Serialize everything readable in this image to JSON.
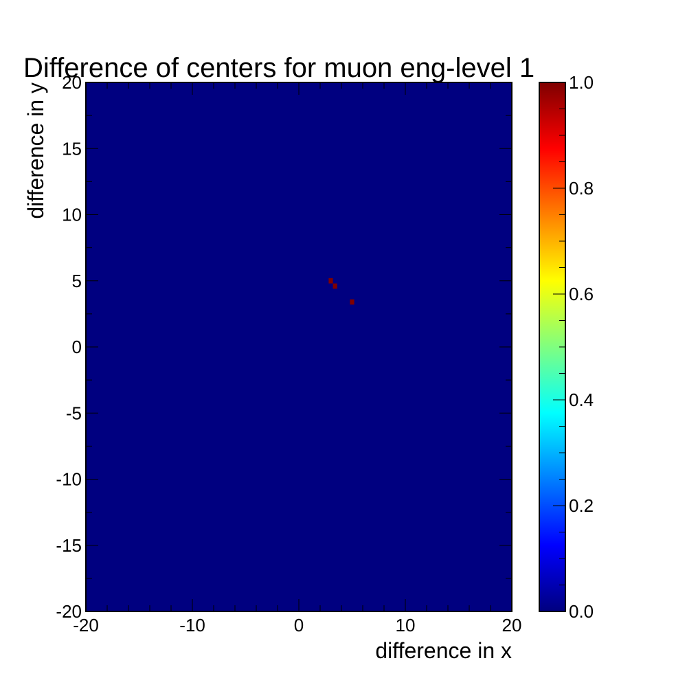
{
  "chart_data": {
    "type": "heatmap",
    "title": "Difference of centers for muon eng-level 1",
    "xlabel": "difference in x",
    "ylabel": "difference in y",
    "xlim": [
      -20,
      20
    ],
    "ylim": [
      -20,
      20
    ],
    "x_ticks": [
      -20,
      -10,
      0,
      10,
      20
    ],
    "y_ticks": [
      -20,
      -15,
      -10,
      -5,
      0,
      5,
      10,
      15,
      20
    ],
    "x_tick_labels": [
      "-20",
      "-10",
      "0",
      "10",
      "20"
    ],
    "y_tick_labels": [
      "-20",
      "-15",
      "-10",
      "-5",
      "0",
      "5",
      "10",
      "15",
      "20"
    ],
    "bin_width": 0.4,
    "background_value": 0.0,
    "points": [
      {
        "x": 3.0,
        "y": 5.0,
        "value": 1.0
      },
      {
        "x": 3.4,
        "y": 4.6,
        "value": 1.0
      },
      {
        "x": 5.0,
        "y": 3.4,
        "value": 1.0
      }
    ],
    "colorbar": {
      "range": [
        0.0,
        1.0
      ],
      "ticks": [
        0.0,
        0.2,
        0.4,
        0.6,
        0.8,
        1.0
      ],
      "tick_labels": [
        "0.0",
        "0.2",
        "0.4",
        "0.6",
        "0.8",
        "1.0"
      ],
      "palette": "jet"
    },
    "grid": false
  }
}
